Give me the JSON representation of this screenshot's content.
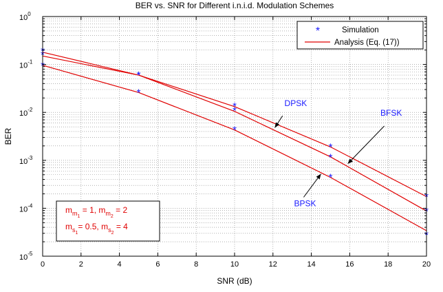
{
  "chart_data": {
    "type": "line",
    "title": "BER vs. SNR for Different i.n.i.d. Modulation Schemes",
    "xlabel": "SNR (dB)",
    "ylabel": "BER",
    "xlim": [
      0,
      20
    ],
    "ylim": [
      1e-05,
      1
    ],
    "yscale": "log",
    "grid": true,
    "x_ticks": [
      "0",
      "2",
      "4",
      "6",
      "8",
      "10",
      "12",
      "14",
      "16",
      "18",
      "20"
    ],
    "y_ticks": [
      {
        "base": "10",
        "exp": "-5"
      },
      {
        "base": "10",
        "exp": "-4"
      },
      {
        "base": "10",
        "exp": "-3"
      },
      {
        "base": "10",
        "exp": "-2"
      },
      {
        "base": "10",
        "exp": "-1"
      },
      {
        "base": "10",
        "exp": "0"
      }
    ],
    "legend": {
      "placement": "top-right",
      "entries": [
        {
          "label": "Simulation",
          "marker": "*",
          "color": "#1a1aff"
        },
        {
          "label": "Analysis (Eq. (17))",
          "marker": "line",
          "color": "#e00000"
        }
      ]
    },
    "series": [
      {
        "name": "BFSK",
        "x": [
          0,
          5,
          10,
          15,
          20
        ],
        "simulation": [
          0.19,
          0.06,
          0.0135,
          0.0019,
          0.000175
        ],
        "analysis": [
          0.18,
          0.06,
          0.0132,
          0.0019,
          0.000175
        ]
      },
      {
        "name": "DPSK",
        "x": [
          0,
          5,
          10,
          15,
          20
        ],
        "simulation": [
          0.16,
          0.06,
          0.011,
          0.00115,
          8.75e-05
        ],
        "analysis": [
          0.15,
          0.06,
          0.0105,
          0.00118,
          8.75e-05
        ]
      },
      {
        "name": "BPSK",
        "x": [
          0,
          5,
          10,
          15,
          20
        ],
        "simulation": [
          0.096,
          0.026,
          0.0043,
          0.00044,
          2.8e-05
        ],
        "analysis": [
          0.096,
          0.026,
          0.0043,
          0.00044,
          3.4e-05
        ]
      }
    ],
    "annotations": [
      {
        "text": "DPSK",
        "color": "#1a1aff",
        "arrow_from": [
          12.5,
          0.0085
        ],
        "arrow_to": [
          12.1,
          0.0048
        ],
        "text_at": [
          12.6,
          0.0135
        ]
      },
      {
        "text": "BFSK",
        "color": "#1a1aff",
        "arrow_from": [
          17.8,
          0.0052
        ],
        "arrow_to": [
          15.9,
          0.00085
        ],
        "text_at": [
          17.6,
          0.0085
        ]
      },
      {
        "text": "BPSK",
        "color": "#1a1aff",
        "arrow_from": [
          13.6,
          0.00017
        ],
        "arrow_to": [
          14.5,
          0.00052
        ],
        "text_at": [
          13.1,
          0.00011
        ]
      }
    ],
    "param_box": {
      "color": "#e00000",
      "line1": [
        {
          "t": "m"
        },
        {
          "t": "m",
          "sub": true
        },
        {
          "t": "1",
          "sub2": true
        },
        {
          "t": " = 1, m"
        },
        {
          "t": "m",
          "sub": true
        },
        {
          "t": "2",
          "sub2": true
        },
        {
          "t": " = 2"
        }
      ],
      "line2": [
        {
          "t": "m"
        },
        {
          "t": "s",
          "sub": true
        },
        {
          "t": "1",
          "sub2": true
        },
        {
          "t": "= 0.5, m"
        },
        {
          "t": "s",
          "sub": true
        },
        {
          "t": "2",
          "sub2": true
        },
        {
          "t": " = 4"
        }
      ]
    }
  }
}
